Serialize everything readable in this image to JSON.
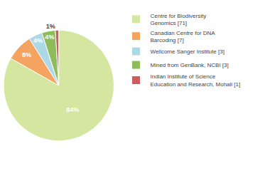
{
  "chart_data": {
    "type": "pie",
    "categories": [
      "Centre for Biodiversity\nGenomics [71]",
      "Canadian Centre for DNA\nBarcoding [7]",
      "Wellcome Sanger Institute [3]",
      "Mined from GenBank, NCBI [3]",
      "Indian Institute of Science\nEducation and Research, Mohali [1]"
    ],
    "values": [
      84,
      8,
      4,
      4,
      1
    ],
    "value_labels": [
      "84%",
      "8%",
      "4%",
      "4%",
      "1%"
    ],
    "colors": [
      "#d4e6a0",
      "#f4a460",
      "#add8e6",
      "#8fbc5a",
      "#cd5c5c"
    ],
    "data_labels": true,
    "legend": "right"
  }
}
